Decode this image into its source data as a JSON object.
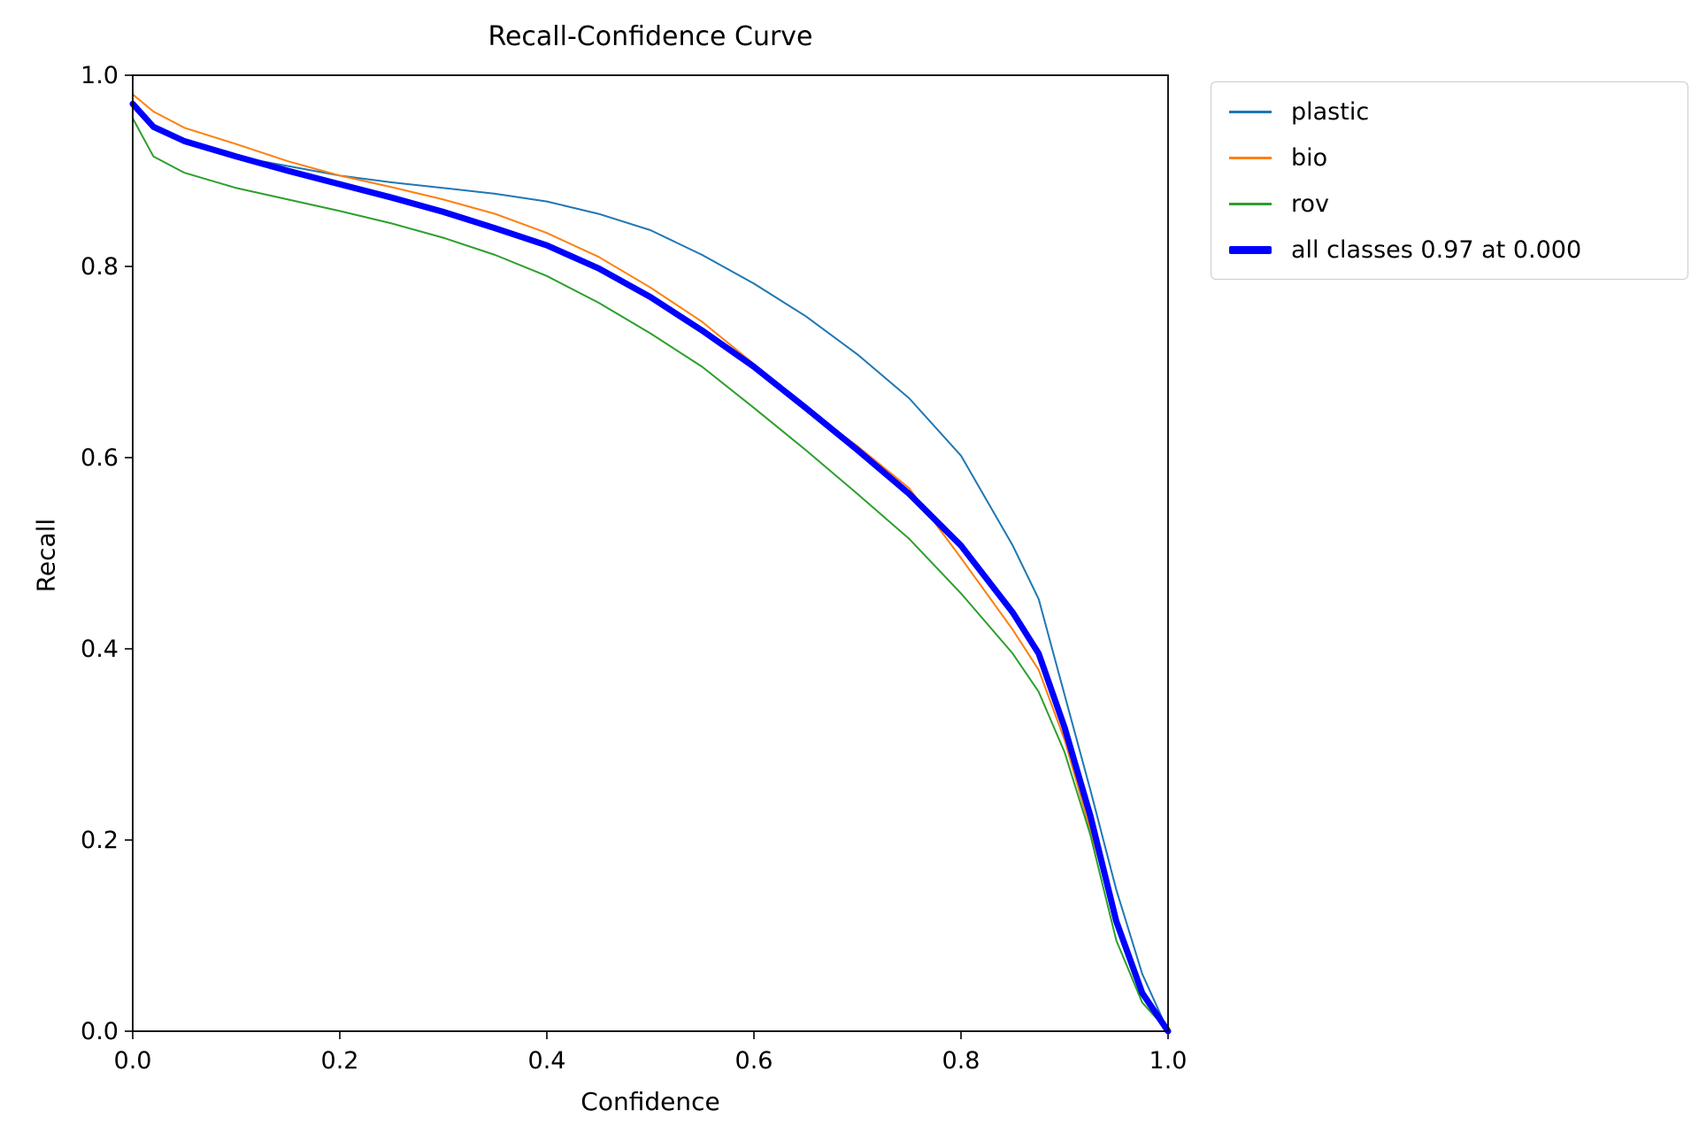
{
  "chart_data": {
    "type": "line",
    "title": "Recall-Confidence Curve",
    "xlabel": "Confidence",
    "ylabel": "Recall",
    "xlim": [
      0.0,
      1.0
    ],
    "ylim": [
      0.0,
      1.0
    ],
    "xticks": [
      0.0,
      0.2,
      0.4,
      0.6,
      0.8,
      1.0
    ],
    "yticks": [
      0.0,
      0.2,
      0.4,
      0.6,
      0.8,
      1.0
    ],
    "grid": "off",
    "legend_position": "outside upper right",
    "x": [
      0.0,
      0.02,
      0.05,
      0.1,
      0.15,
      0.2,
      0.25,
      0.3,
      0.35,
      0.4,
      0.45,
      0.5,
      0.55,
      0.6,
      0.65,
      0.7,
      0.75,
      0.8,
      0.85,
      0.875,
      0.9,
      0.925,
      0.95,
      0.975,
      1.0
    ],
    "series": [
      {
        "name": "plastic",
        "label": "plastic",
        "color": "#1f77b4",
        "width": 2,
        "y": [
          0.97,
          0.945,
          0.93,
          0.915,
          0.905,
          0.895,
          0.888,
          0.882,
          0.876,
          0.868,
          0.855,
          0.838,
          0.812,
          0.782,
          0.748,
          0.708,
          0.662,
          0.602,
          0.508,
          0.452,
          0.352,
          0.252,
          0.148,
          0.06,
          0.0
        ]
      },
      {
        "name": "bio",
        "label": "bio",
        "color": "#ff7f0e",
        "width": 2,
        "y": [
          0.98,
          0.962,
          0.945,
          0.928,
          0.91,
          0.895,
          0.883,
          0.87,
          0.855,
          0.835,
          0.81,
          0.778,
          0.742,
          0.698,
          0.652,
          0.612,
          0.568,
          0.495,
          0.42,
          0.378,
          0.305,
          0.21,
          0.115,
          0.04,
          0.0
        ]
      },
      {
        "name": "rov",
        "label": "rov",
        "color": "#2ca02c",
        "width": 2,
        "y": [
          0.955,
          0.915,
          0.898,
          0.882,
          0.87,
          0.858,
          0.845,
          0.83,
          0.812,
          0.79,
          0.762,
          0.73,
          0.695,
          0.652,
          0.608,
          0.562,
          0.515,
          0.458,
          0.395,
          0.355,
          0.292,
          0.205,
          0.095,
          0.03,
          0.0
        ]
      },
      {
        "name": "all-classes",
        "label": "all classes 0.97 at 0.000",
        "color": "#0000ff",
        "width": 7,
        "y": [
          0.97,
          0.946,
          0.931,
          0.915,
          0.9,
          0.886,
          0.872,
          0.857,
          0.84,
          0.822,
          0.798,
          0.768,
          0.733,
          0.695,
          0.652,
          0.608,
          0.562,
          0.508,
          0.438,
          0.395,
          0.318,
          0.225,
          0.115,
          0.04,
          0.0
        ]
      }
    ],
    "summary": {
      "best_recall": "0.97",
      "at_confidence": "0.000"
    }
  }
}
